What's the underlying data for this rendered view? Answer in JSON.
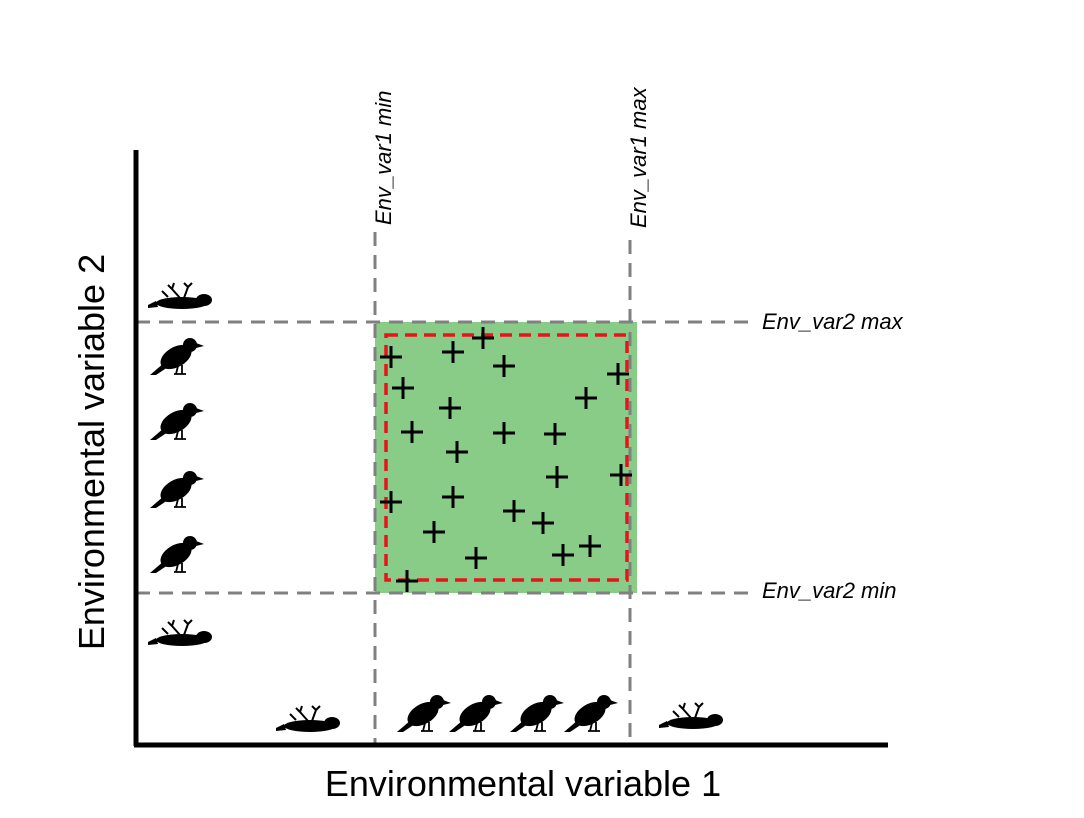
{
  "axes": {
    "x_label": "Environmental variable 1",
    "y_label": "Environmental variable 2"
  },
  "thresholds": {
    "var1_min": "Env_var1 min",
    "var1_max": "Env_var1 max",
    "var2_max": "Env_var2 max",
    "var2_min": "Env_var2 min"
  }
}
